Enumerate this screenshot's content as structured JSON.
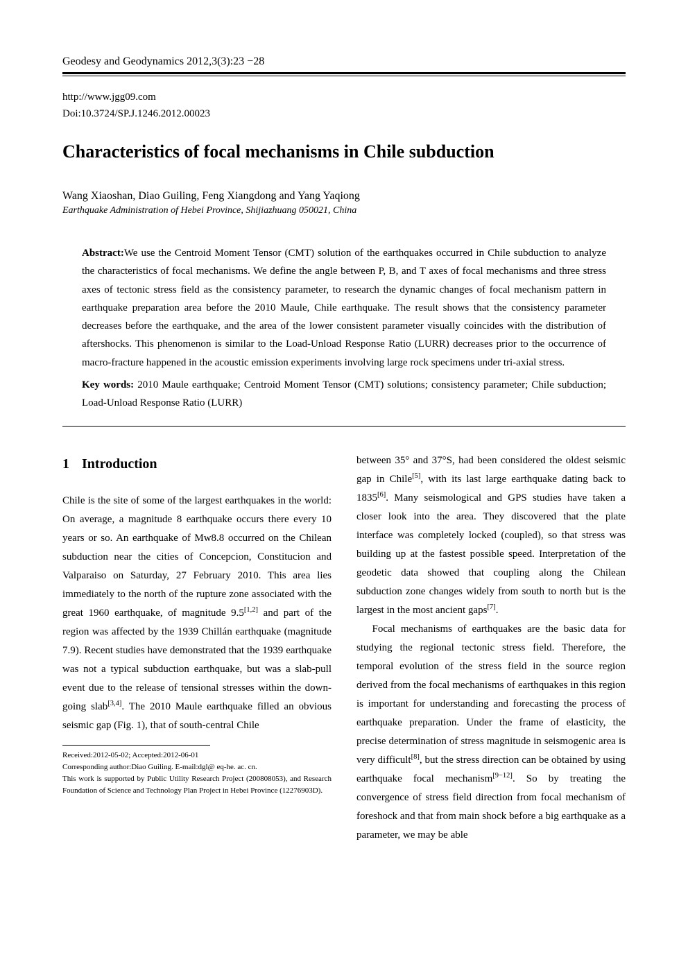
{
  "header": {
    "journal_line": "Geodesy and Geodynamics   2012,3(3):23 −28",
    "url": "http://www.jgg09.com",
    "doi": "Doi:10.3724/SP.J.1246.2012.00023"
  },
  "title": "Characteristics of focal mechanisms in Chile subduction",
  "authors": "Wang Xiaoshan, Diao Guiling, Feng Xiangdong and Yang Yaqiong",
  "affiliation": "Earthquake Administration of Hebei Province, Shijiazhuang 050021, China",
  "abstract": {
    "label": "Abstract:",
    "text": "We use the Centroid Moment Tensor (CMT) solution of the earthquakes occurred in Chile subduction to analyze the characteristics of focal mechanisms. We define the angle between P, B, and T axes of focal mechanisms and three stress axes of tectonic stress field as the consistency parameter, to research the dynamic changes of focal mechanism pattern in earthquake preparation area before the 2010 Maule, Chile earthquake. The result shows that the consistency parameter decreases before the earthquake, and the area of the lower consistent parameter visually coincides with the distribution of aftershocks. This phenomenon is similar to the Load-Unload Response Ratio (LURR) decreases prior to the occurrence of macro-fracture happened in the acoustic emission experiments involving large rock specimens under tri-axial stress.",
    "keywords_label": "Key words:",
    "keywords": " 2010 Maule earthquake; Centroid Moment Tensor (CMT) solutions; consistency parameter; Chile subduction; Load-Unload Response Ratio (LURR)"
  },
  "section": {
    "number": "1",
    "title": "Introduction"
  },
  "left_column": {
    "para1_a": "Chile is the site of some of the largest earthquakes in the world: On average, a magnitude 8 earthquake occurs there every 10 years or so. An earthquake of Mw8.8 occurred on the Chilean subduction near the cities of Concepcion, Constitucion and Valparaiso on Saturday, 27 February 2010. This area lies immediately to the north of the rupture zone associated with the great 1960 earthquake, of magnitude 9.5",
    "sup1": "[1,2]",
    "para1_b": " and part of the region was affected by the 1939 Chillán earthquake (magnitude 7.9). Recent studies have demonstrated that the 1939 earthquake was not a typical subduction earthquake, but was a slab-pull event due to the release of tensional stresses within the down-going slab",
    "sup2": "[3,4]",
    "para1_c": ". The 2010 Maule earthquake filled an obvious seismic gap (Fig. 1), that of south-central Chile"
  },
  "right_column": {
    "para1_a": "between 35° and 37°S, had been considered the oldest seismic gap in Chile",
    "sup1": "[5]",
    "para1_b": ", with its last large earthquake dating back to 1835",
    "sup2": "[6]",
    "para1_c": ". Many seismological and GPS studies have taken a closer look into the area. They discovered that the plate interface was completely locked (coupled), so that stress was building up at the fastest possible speed. Interpretation of the geodetic data showed that coupling along the Chilean subduction zone changes widely from south to north but is the largest in the most ancient gaps",
    "sup3": "[7]",
    "para1_d": ".",
    "para2_a": "Focal mechanisms of earthquakes are the basic data for studying the regional tectonic stress field. Therefore, the temporal evolution of the stress field in the source region derived from the focal mechanisms of earthquakes in this region is important for understanding and forecasting the process of earthquake preparation. Under the frame of elasticity, the precise determination of stress magnitude in seismogenic area is very difficult",
    "sup4": "[8]",
    "para2_b": ", but the stress direction can be obtained by using earthquake focal mechanism",
    "sup5": "[9−12]",
    "para2_c": ". So by treating the convergence of stress field direction from focal mechanism of foreshock and that from main shock before a big earthquake as a parameter, we may be able"
  },
  "footnotes": {
    "received": "Received:2012-05-02;  Accepted:2012-06-01",
    "corresponding": "Corresponding author:Diao Guiling. E-mail:dgl@ eq-he. ac. cn.",
    "funding": "This work is supported by Public Utility Research Project (200808053), and Research Foundation of Science and Technology Plan Project in Hebei Province (12276903D)."
  }
}
